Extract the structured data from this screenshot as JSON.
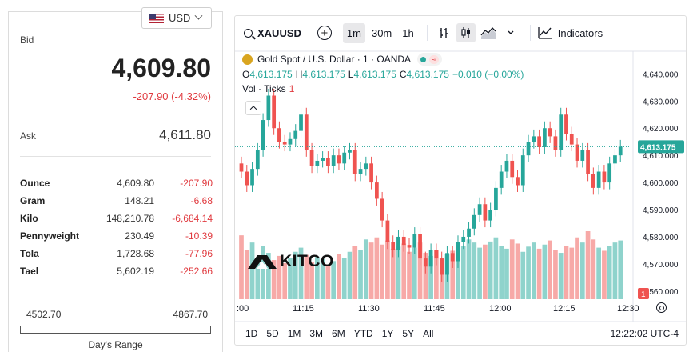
{
  "quote": {
    "currency": "USD",
    "bid_label": "Bid",
    "bid": "4,609.80",
    "change": "-207.90 (-4.32%)",
    "ask_label": "Ask",
    "ask": "4,611.80",
    "units": [
      {
        "name": "Ounce",
        "value": "4,609.80",
        "change": "-207.90"
      },
      {
        "name": "Gram",
        "value": "148.21",
        "change": "-6.68"
      },
      {
        "name": "Kilo",
        "value": "148,210.78",
        "change": "-6,684.14"
      },
      {
        "name": "Pennyweight",
        "value": "230.49",
        "change": "-10.39"
      },
      {
        "name": "Tola",
        "value": "1,728.68",
        "change": "-77.96"
      },
      {
        "name": "Tael",
        "value": "5,602.19",
        "change": "-252.66"
      }
    ],
    "range_low": "4502.70",
    "range_high": "4867.70",
    "range_title": "Day's Range"
  },
  "toolbar": {
    "symbol": "XAUUSD",
    "intervals": [
      "1m",
      "30m",
      "1h"
    ],
    "active_interval": "1m",
    "indicators_label": "Indicators"
  },
  "legend": {
    "title": "Gold Spot / U.S. Dollar · 1 · OANDA",
    "o_label": "O",
    "o": "4,613.175",
    "h_label": "H",
    "h": "4,613.175",
    "l_label": "L",
    "l": "4,613.175",
    "c_label": "C",
    "c": "4,613.175",
    "change": "−0.010 (−0.00%)",
    "vol_label": "Vol · Ticks",
    "vol_value": "1"
  },
  "logo_text": "KITCO",
  "bottom": {
    "ranges": [
      "1D",
      "5D",
      "1M",
      "3M",
      "6M",
      "YTD",
      "1Y",
      "5Y",
      "All"
    ],
    "clock": "12:22:02 UTC-4"
  },
  "colors": {
    "up": "#26a69a",
    "down": "#ef5350",
    "vol_up": "#8fd3cc",
    "vol_down": "#f7a9a7",
    "last_price": "#26a69a"
  },
  "chart_data": {
    "type": "candlestick",
    "x_ticks": [
      ":00",
      "11:15",
      "11:30",
      "11:45",
      "12:00",
      "12:15",
      "12:30"
    ],
    "y_ticks": [
      "4,640.000",
      "4,630.000",
      "4,620.000",
      "4,610.000",
      "4,600.000",
      "4,590.000",
      "4,580.000",
      "4,570.000",
      "4,560.000"
    ],
    "ylim": [
      4557,
      4646
    ],
    "last_price": "4,613.175",
    "last_price_value": 4613.175,
    "volume_label": "1",
    "closes": [
      4604,
      4599,
      4605,
      4612,
      4623,
      4632,
      4620,
      4615,
      4614,
      4616,
      4619,
      4625,
      4612,
      4606,
      4608,
      4609,
      4606,
      4610,
      4607,
      4611,
      4612,
      4603,
      4605,
      4607,
      4600,
      4594,
      4586,
      4578,
      4575,
      4580,
      4577,
      4576,
      4581,
      4572,
      4569,
      4575,
      4572,
      4566,
      4574,
      4571,
      4578,
      4580,
      4583,
      4588,
      4592,
      4586,
      4590,
      4598,
      4604,
      4608,
      4602,
      4599,
      4610,
      4615,
      4617,
      4613,
      4620,
      4617,
      4612,
      4625,
      4618,
      4614,
      4608,
      4612,
      4603,
      4598,
      4604,
      4600,
      4607,
      4610,
      4613.175
    ],
    "volumes": [
      0.62,
      0.48,
      0.55,
      0.4,
      0.52,
      0.45,
      0.38,
      0.42,
      0.35,
      0.4,
      0.46,
      0.5,
      0.43,
      0.36,
      0.41,
      0.39,
      0.33,
      0.37,
      0.44,
      0.4,
      0.46,
      0.52,
      0.48,
      0.58,
      0.55,
      0.6,
      0.53,
      0.57,
      0.49,
      0.51,
      0.54,
      0.46,
      0.5,
      0.55,
      0.45,
      0.42,
      0.48,
      0.4,
      0.44,
      0.47,
      0.43,
      0.52,
      0.58,
      0.55,
      0.5,
      0.53,
      0.56,
      0.6,
      0.52,
      0.49,
      0.58,
      0.54,
      0.46,
      0.51,
      0.55,
      0.49,
      0.53,
      0.57,
      0.48,
      0.45,
      0.52,
      0.5,
      0.6,
      0.55,
      0.66,
      0.58,
      0.5,
      0.47,
      0.52,
      0.55,
      0.57
    ]
  }
}
